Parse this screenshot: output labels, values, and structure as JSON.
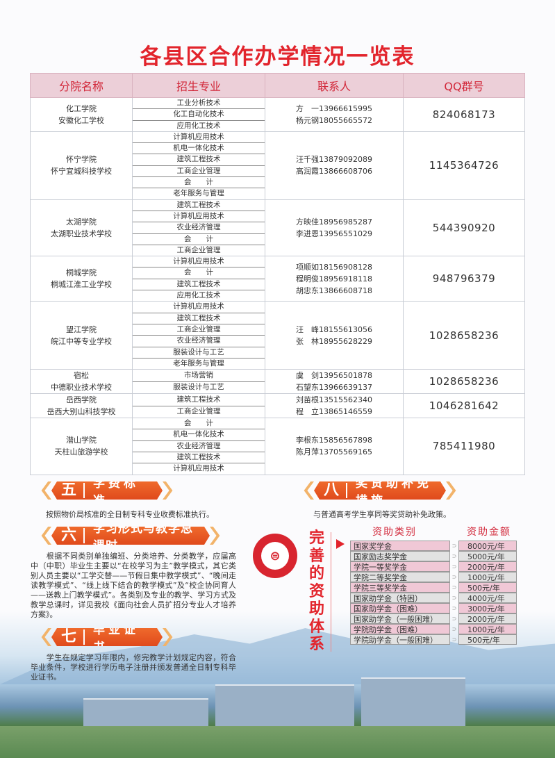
{
  "title": "各县区合作办学情况一览表",
  "table": {
    "headers": [
      "分院名称",
      "招生专业",
      "联系人",
      "QQ群号"
    ],
    "rows": [
      {
        "name": [
          "化工学院",
          "安徽化工学校"
        ],
        "majors": [
          "工业分析技术",
          "化工自动化技术",
          "应用化工技术"
        ],
        "contacts": [
          "方　一13966615995",
          "杨元钢18055665572"
        ],
        "qq": "824068173"
      },
      {
        "name": [
          "怀宁学院",
          "怀宁宜城科技学校"
        ],
        "majors": [
          "计算机应用技术",
          "机电一体化技术",
          "建筑工程技术",
          "工商企业管理",
          "会　　计",
          "老年服务与管理"
        ],
        "contacts": [
          "汪千强13879092089",
          "高润霞13866608706"
        ],
        "qq": "1145364726"
      },
      {
        "name": [
          "太湖学院",
          "太湖职业技术学校"
        ],
        "majors": [
          "建筑工程技术",
          "计算机应用技术",
          "农业经济管理",
          "会　　计",
          "工商企业管理"
        ],
        "contacts": [
          "方映佳18956985287",
          "李进恩13956551029"
        ],
        "qq": "544390920"
      },
      {
        "name": [
          "桐城学院",
          "桐城江淮工业学校"
        ],
        "majors": [
          "计算机应用技术",
          "会　　计",
          "建筑工程技术",
          "应用化工技术"
        ],
        "contacts": [
          "项顺如18156908128",
          "程明俊18956918118",
          "胡忠东13866608718"
        ],
        "qq": "948796379"
      },
      {
        "name": [
          "望江学院",
          "皖江中等专业学校"
        ],
        "majors": [
          "计算机应用技术",
          "建筑工程技术",
          "工商企业管理",
          "农业经济管理",
          "服装设计与工艺",
          "老年服务与管理"
        ],
        "contacts": [
          "汪　峰18155613056",
          "张　林18955628229"
        ],
        "qq": "1028658236"
      },
      {
        "name": [
          "宿松",
          "中德职业技术学校"
        ],
        "majors": [
          "市场营销",
          "服装设计与工艺"
        ],
        "contacts": [
          "虞　剑13956501878",
          "石望东13966639137"
        ],
        "qq": "1028658236"
      },
      {
        "name": [
          "岳西学院",
          "岳西大别山科技学校"
        ],
        "majors": [
          "建筑工程技术",
          "工商企业管理"
        ],
        "contacts": [
          "刘苗根13515562340",
          "程　立13865146559"
        ],
        "qq": "1046281642"
      },
      {
        "name": [
          "潜山学院",
          "天柱山旅游学校"
        ],
        "majors": [
          "会　　计",
          "机电一体化技术",
          "农业经济管理",
          "建筑工程技术",
          "计算机应用技术"
        ],
        "contacts": [
          "李根东15856567898",
          "陈月萍13705569165"
        ],
        "qq": "785411980"
      }
    ]
  },
  "sections": {
    "five": {
      "num": "五",
      "title": "学费标准",
      "text": "按照物价局核准的全日制专科专业收费标准执行。"
    },
    "six": {
      "num": "六",
      "title": "学习形式与教学总课时",
      "text": "　　根据不同类别单独编班、分类培养、分类教学，应届高中（中职）毕业生主要以“在校学习为主”教学模式，其它类别人员主要以“工学交替——节假日集中教学模式”、“晚间走读教学模式”、“线上线下结合的教学模式”及“校企协同育人——送教上门教学模式”。各类别及专业的教学、学习方式及教学总课时，详见我校《面向社会人员扩招分专业人才培养方案》。"
    },
    "seven": {
      "num": "七",
      "title": "毕业证书",
      "text": "　　学生在规定学习年限内，修完教学计划规定内容，符合毕业条件，学校进行学历电子注册并颁发普通全日制专科毕业证书。"
    },
    "eight": {
      "num": "八",
      "title": "奖贷助补免措施",
      "text": "与普通高考学生享同等奖贷助补免政策。"
    }
  },
  "aid": {
    "side_title": "完善的资助体系",
    "category_header": "资助类别",
    "amount_header": "资助金额",
    "rows": [
      {
        "category": "国家奖学金",
        "amount": "8000元/年"
      },
      {
        "category": "国家励志奖学金",
        "amount": "5000元/年"
      },
      {
        "category": "学院一等奖学金",
        "amount": "2000元/年"
      },
      {
        "category": "学院二等奖学金",
        "amount": "1000元/年"
      },
      {
        "category": "学院三等奖学金",
        "amount": "500元/年"
      },
      {
        "category": "国家助学金（特困）",
        "amount": "4000元/年"
      },
      {
        "category": "国家助学金（困难）",
        "amount": "3000元/年"
      },
      {
        "category": "国家助学金（一般困难）",
        "amount": "2000元/年"
      },
      {
        "category": "学院助学金（困难）",
        "amount": "1000元/年"
      },
      {
        "category": "学院助学金（一般困难）",
        "amount": "500元/年"
      }
    ]
  },
  "colors": {
    "accent": "#e2242c",
    "header_bg": "#eccfd8",
    "banner": "#e8561f",
    "row_pink": "#f0c8d6",
    "row_gray": "#e2e2e2"
  }
}
